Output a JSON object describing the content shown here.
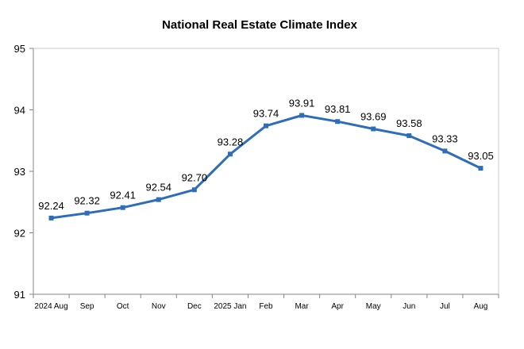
{
  "chart_data": {
    "type": "line",
    "title": "National Real Estate Climate Index",
    "xlabel": "",
    "ylabel": "",
    "categories": [
      "2024 Aug",
      "Sep",
      "Oct",
      "Nov",
      "Dec",
      "2025 Jan",
      "Feb",
      "Mar",
      "Apr",
      "May",
      "Jun",
      "Jul",
      "Aug"
    ],
    "series": [
      {
        "values": [
          92.24,
          92.32,
          92.41,
          92.54,
          92.7,
          93.28,
          93.74,
          93.91,
          93.81,
          93.69,
          93.58,
          93.33,
          93.05
        ],
        "labels": [
          "92.24",
          "92.32",
          "92.41",
          "92.54",
          "92.70",
          "93.28",
          "93.74",
          "93.91",
          "93.81",
          "93.69",
          "93.58",
          "93.33",
          "93.05"
        ],
        "color": "#2E6DB9",
        "marker": "square"
      }
    ],
    "ylim": [
      91,
      95
    ],
    "yticks": [
      91,
      92,
      93,
      94,
      95
    ],
    "grid": false,
    "legend": "none"
  }
}
